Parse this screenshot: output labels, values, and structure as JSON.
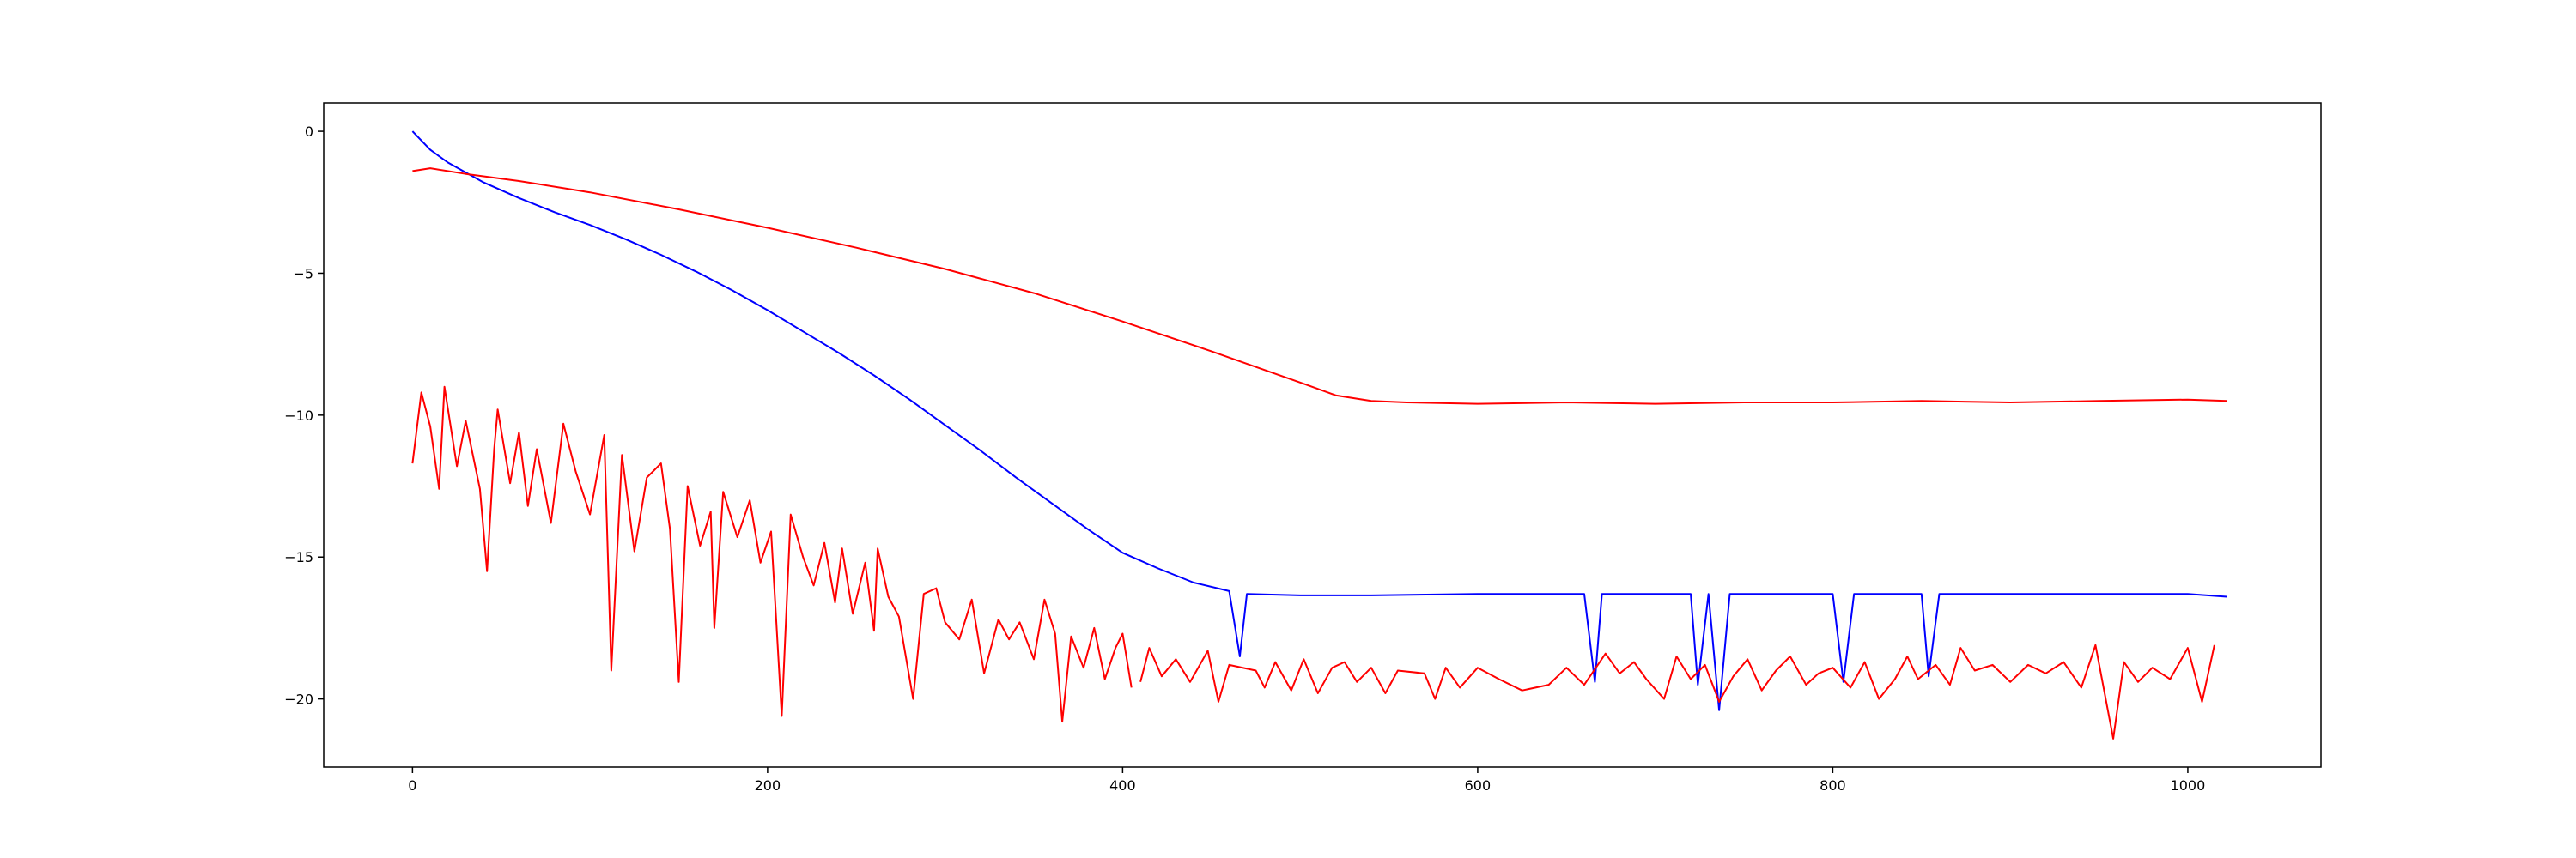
{
  "chart_data": {
    "type": "line",
    "title": "",
    "xlabel": "",
    "ylabel": "",
    "xlim": [
      -50,
      1075
    ],
    "ylim": [
      -22.4,
      1.0
    ],
    "grid": false,
    "legend": "none",
    "x_ticks": [
      0,
      200,
      400,
      600,
      800,
      1000
    ],
    "y_ticks": [
      0,
      -5,
      -10,
      -15,
      -20
    ],
    "x_tick_labels": [
      "0",
      "200",
      "400",
      "600",
      "800",
      "1000"
    ],
    "y_tick_labels": [
      "0",
      "−5",
      "−10",
      "−15",
      "−20"
    ],
    "series": [
      {
        "color": "#0000ff",
        "points": [
          [
            0,
            0.0
          ],
          [
            10,
            -0.65
          ],
          [
            20,
            -1.1
          ],
          [
            40,
            -1.8
          ],
          [
            60,
            -2.35
          ],
          [
            80,
            -2.85
          ],
          [
            100,
            -3.3
          ],
          [
            120,
            -3.8
          ],
          [
            140,
            -4.35
          ],
          [
            160,
            -4.95
          ],
          [
            180,
            -5.6
          ],
          [
            200,
            -6.3
          ],
          [
            220,
            -7.05
          ],
          [
            240,
            -7.8
          ],
          [
            260,
            -8.6
          ],
          [
            280,
            -9.45
          ],
          [
            300,
            -10.35
          ],
          [
            320,
            -11.25
          ],
          [
            340,
            -12.2
          ],
          [
            360,
            -13.1
          ],
          [
            380,
            -14.0
          ],
          [
            400,
            -14.85
          ],
          [
            420,
            -15.4
          ],
          [
            440,
            -15.9
          ],
          [
            460,
            -16.2
          ],
          [
            466,
            -18.5
          ],
          [
            470,
            -16.3
          ],
          [
            500,
            -16.35
          ],
          [
            540,
            -16.35
          ],
          [
            600,
            -16.3
          ],
          [
            660,
            -16.3
          ],
          [
            666,
            -19.4
          ],
          [
            670,
            -16.3
          ],
          [
            720,
            -16.3
          ],
          [
            724,
            -19.5
          ],
          [
            730,
            -16.3
          ],
          [
            736,
            -20.4
          ],
          [
            742,
            -16.3
          ],
          [
            800,
            -16.3
          ],
          [
            806,
            -19.4
          ],
          [
            812,
            -16.3
          ],
          [
            850,
            -16.3
          ],
          [
            854,
            -19.2
          ],
          [
            860,
            -16.3
          ],
          [
            900,
            -16.3
          ],
          [
            950,
            -16.3
          ],
          [
            1000,
            -16.3
          ],
          [
            1022,
            -16.4
          ]
        ]
      },
      {
        "color": "#ff0000",
        "points": [
          [
            0,
            -1.4
          ],
          [
            10,
            -1.3
          ],
          [
            30,
            -1.5
          ],
          [
            60,
            -1.75
          ],
          [
            100,
            -2.15
          ],
          [
            150,
            -2.75
          ],
          [
            200,
            -3.4
          ],
          [
            250,
            -4.1
          ],
          [
            300,
            -4.85
          ],
          [
            350,
            -5.7
          ],
          [
            400,
            -6.7
          ],
          [
            450,
            -7.75
          ],
          [
            500,
            -8.85
          ],
          [
            520,
            -9.3
          ],
          [
            540,
            -9.5
          ],
          [
            560,
            -9.55
          ],
          [
            600,
            -9.6
          ],
          [
            650,
            -9.55
          ],
          [
            700,
            -9.6
          ],
          [
            750,
            -9.55
          ],
          [
            800,
            -9.55
          ],
          [
            850,
            -9.5
          ],
          [
            900,
            -9.55
          ],
          [
            950,
            -9.5
          ],
          [
            1000,
            -9.45
          ],
          [
            1022,
            -9.5
          ]
        ]
      },
      {
        "color": "#ff0000",
        "points": [
          [
            0,
            -11.7
          ],
          [
            5,
            -9.2
          ],
          [
            10,
            -10.4
          ],
          [
            15,
            -12.6
          ],
          [
            18,
            -9.0
          ],
          [
            25,
            -11.8
          ],
          [
            30,
            -10.2
          ],
          [
            38,
            -12.6
          ],
          [
            42,
            -15.5
          ],
          [
            46,
            -11.2
          ],
          [
            48,
            -9.8
          ],
          [
            55,
            -12.4
          ],
          [
            60,
            -10.6
          ],
          [
            65,
            -13.2
          ],
          [
            70,
            -11.2
          ],
          [
            78,
            -13.8
          ],
          [
            85,
            -10.3
          ],
          [
            92,
            -12.0
          ],
          [
            100,
            -13.5
          ],
          [
            108,
            -10.7
          ],
          [
            112,
            -19.0
          ],
          [
            118,
            -11.4
          ],
          [
            125,
            -14.8
          ],
          [
            132,
            -12.2
          ],
          [
            140,
            -11.7
          ],
          [
            145,
            -14.0
          ],
          [
            150,
            -19.4
          ],
          [
            155,
            -12.5
          ],
          [
            162,
            -14.6
          ],
          [
            168,
            -13.4
          ],
          [
            170,
            -17.5
          ],
          [
            175,
            -12.7
          ],
          [
            183,
            -14.3
          ],
          [
            190,
            -13.0
          ],
          [
            196,
            -15.2
          ],
          [
            202,
            -14.1
          ],
          [
            208,
            -20.6
          ],
          [
            213,
            -13.5
          ],
          [
            220,
            -15.0
          ],
          [
            226,
            -16.0
          ],
          [
            232,
            -14.5
          ],
          [
            238,
            -16.6
          ],
          [
            242,
            -14.7
          ],
          [
            248,
            -17.0
          ],
          [
            255,
            -15.2
          ],
          [
            260,
            -17.6
          ],
          [
            262,
            -14.7
          ],
          [
            268,
            -16.4
          ],
          [
            274,
            -17.1
          ],
          [
            282,
            -20.0
          ],
          [
            288,
            -16.3
          ],
          [
            295,
            -16.1
          ],
          [
            300,
            -17.3
          ],
          [
            308,
            -17.9
          ],
          [
            315,
            -16.5
          ],
          [
            322,
            -19.1
          ],
          [
            330,
            -17.2
          ],
          [
            336,
            -17.9
          ],
          [
            342,
            -17.3
          ],
          [
            350,
            -18.6
          ],
          [
            356,
            -16.5
          ],
          [
            362,
            -17.7
          ],
          [
            366,
            -20.8
          ],
          [
            371,
            -17.8
          ],
          [
            378,
            -18.9
          ],
          [
            384,
            -17.5
          ],
          [
            390,
            -19.3
          ],
          [
            396,
            -18.2
          ],
          [
            400,
            -17.7
          ],
          [
            405,
            -19.6
          ]
        ]
      },
      {
        "color": "#ff0000",
        "points": [
          [
            410,
            -19.4
          ],
          [
            415,
            -18.2
          ],
          [
            422,
            -19.2
          ],
          [
            430,
            -18.6
          ],
          [
            438,
            -19.4
          ],
          [
            448,
            -18.3
          ],
          [
            454,
            -20.1
          ],
          [
            460,
            -18.8
          ],
          [
            475,
            -19.0
          ],
          [
            480,
            -19.6
          ],
          [
            486,
            -18.7
          ],
          [
            495,
            -19.7
          ],
          [
            502,
            -18.6
          ],
          [
            510,
            -19.8
          ],
          [
            518,
            -18.9
          ],
          [
            525,
            -18.7
          ],
          [
            532,
            -19.4
          ],
          [
            540,
            -18.9
          ],
          [
            548,
            -19.8
          ],
          [
            555,
            -19.0
          ],
          [
            570,
            -19.1
          ],
          [
            576,
            -20.0
          ],
          [
            582,
            -18.9
          ],
          [
            590,
            -19.6
          ],
          [
            600,
            -18.9
          ],
          [
            612,
            -19.3
          ],
          [
            625,
            -19.7
          ],
          [
            640,
            -19.5
          ],
          [
            650,
            -18.9
          ],
          [
            660,
            -19.5
          ],
          [
            672,
            -18.4
          ],
          [
            680,
            -19.1
          ],
          [
            688,
            -18.7
          ],
          [
            695,
            -19.3
          ],
          [
            705,
            -20.0
          ],
          [
            712,
            -18.5
          ],
          [
            720,
            -19.3
          ],
          [
            728,
            -18.8
          ],
          [
            736,
            -20.1
          ],
          [
            744,
            -19.2
          ],
          [
            752,
            -18.6
          ],
          [
            760,
            -19.7
          ],
          [
            768,
            -19.0
          ],
          [
            776,
            -18.5
          ],
          [
            785,
            -19.5
          ],
          [
            792,
            -19.1
          ],
          [
            800,
            -18.9
          ],
          [
            810,
            -19.6
          ],
          [
            818,
            -18.7
          ],
          [
            826,
            -20.0
          ],
          [
            835,
            -19.3
          ],
          [
            842,
            -18.5
          ],
          [
            848,
            -19.3
          ],
          [
            858,
            -18.8
          ],
          [
            866,
            -19.5
          ],
          [
            872,
            -18.2
          ],
          [
            880,
            -19.0
          ],
          [
            890,
            -18.8
          ],
          [
            900,
            -19.4
          ],
          [
            910,
            -18.8
          ],
          [
            920,
            -19.1
          ],
          [
            930,
            -18.7
          ],
          [
            940,
            -19.6
          ],
          [
            948,
            -18.1
          ],
          [
            958,
            -21.4
          ],
          [
            964,
            -18.7
          ],
          [
            972,
            -19.4
          ],
          [
            980,
            -18.9
          ],
          [
            990,
            -19.3
          ],
          [
            1000,
            -18.2
          ],
          [
            1008,
            -20.1
          ],
          [
            1015,
            -18.1
          ]
        ]
      }
    ]
  }
}
